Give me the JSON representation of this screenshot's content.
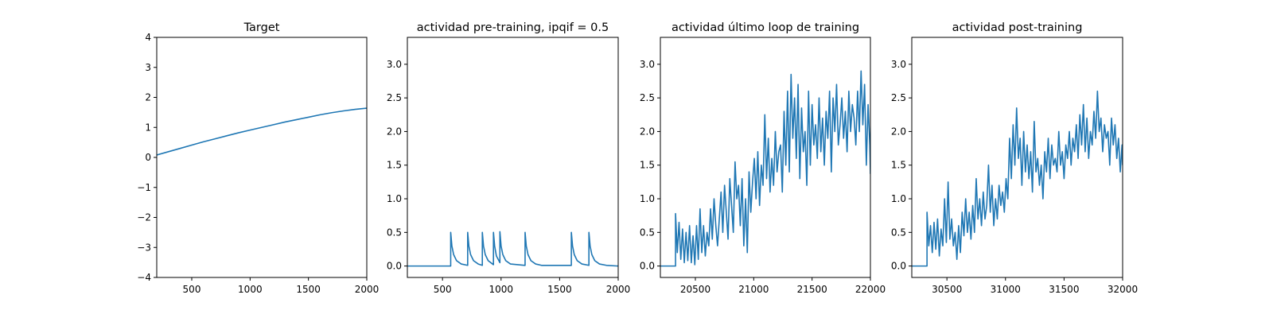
{
  "chart_data": [
    {
      "type": "line",
      "title": "Target",
      "xlim": [
        200,
        2000
      ],
      "ylim": [
        -4,
        4
      ],
      "xticks": [
        500,
        1000,
        1500,
        2000
      ],
      "yticks": [
        -4,
        -3,
        -2,
        -1,
        0,
        1,
        2,
        3,
        4
      ],
      "series": [
        {
          "color": "#1f77b4",
          "x": [
            200,
            300,
            400,
            500,
            600,
            700,
            800,
            900,
            1000,
            1100,
            1200,
            1300,
            1400,
            1500,
            1600,
            1700,
            1800,
            1900,
            2000
          ],
          "y": [
            0.08,
            0.19,
            0.3,
            0.41,
            0.52,
            0.62,
            0.72,
            0.82,
            0.91,
            1.0,
            1.09,
            1.18,
            1.26,
            1.34,
            1.42,
            1.49,
            1.55,
            1.6,
            1.64
          ]
        }
      ]
    },
    {
      "type": "line",
      "title": "actividad pre-training, ipqif = 0.5",
      "xlim": [
        200,
        2000
      ],
      "ylim": [
        -0.17,
        3.4
      ],
      "xticks": [
        500,
        1000,
        1500,
        2000
      ],
      "yticks": [
        0.0,
        0.5,
        1.0,
        1.5,
        2.0,
        2.5,
        3.0
      ],
      "series": [
        {
          "color": "#1f77b4",
          "x": [
            200,
            570,
            570,
            580,
            595,
            620,
            660,
            715,
            715,
            725,
            740,
            765,
            805,
            840,
            840,
            850,
            865,
            890,
            935,
            935,
            945,
            960,
            990,
            990,
            1000,
            1015,
            1040,
            1080,
            1205,
            1205,
            1215,
            1230,
            1255,
            1295,
            1345,
            1600,
            1600,
            1610,
            1625,
            1650,
            1690,
            1750,
            1750,
            1760,
            1775,
            1800,
            1840,
            1900,
            2000
          ],
          "y": [
            0.0,
            0.0,
            0.5,
            0.3,
            0.17,
            0.08,
            0.03,
            0.01,
            0.5,
            0.3,
            0.17,
            0.08,
            0.03,
            0.01,
            0.5,
            0.3,
            0.17,
            0.08,
            0.02,
            0.5,
            0.3,
            0.15,
            0.05,
            0.51,
            0.3,
            0.17,
            0.08,
            0.03,
            0.01,
            0.5,
            0.3,
            0.17,
            0.08,
            0.03,
            0.01,
            0.01,
            0.5,
            0.3,
            0.17,
            0.08,
            0.03,
            0.01,
            0.5,
            0.3,
            0.17,
            0.08,
            0.03,
            0.01,
            0.0
          ]
        }
      ]
    },
    {
      "type": "line",
      "title": "actividad último loop de training",
      "xlim": [
        20200,
        22000
      ],
      "ylim": [
        -0.17,
        3.4
      ],
      "xticks": [
        20500,
        21000,
        21500,
        22000
      ],
      "yticks": [
        0.0,
        0.5,
        1.0,
        1.5,
        2.0,
        2.5,
        3.0
      ],
      "series": [
        {
          "color": "#1f77b4",
          "x": [
            20200,
            20330,
            20330,
            20345,
            20360,
            20375,
            20390,
            20405,
            20420,
            20435,
            20450,
            20465,
            20480,
            20495,
            20510,
            20525,
            20540,
            20555,
            20570,
            20585,
            20600,
            20615,
            20630,
            20645,
            20660,
            20675,
            20690,
            20705,
            20720,
            20735,
            20750,
            20765,
            20780,
            20795,
            20810,
            20825,
            20840,
            20855,
            20870,
            20885,
            20900,
            20915,
            20930,
            20945,
            20960,
            20975,
            20990,
            21005,
            21020,
            21035,
            21050,
            21065,
            21080,
            21095,
            21110,
            21125,
            21140,
            21155,
            21170,
            21185,
            21200,
            21215,
            21230,
            21245,
            21260,
            21275,
            21290,
            21305,
            21320,
            21335,
            21350,
            21365,
            21380,
            21395,
            21410,
            21425,
            21440,
            21455,
            21470,
            21485,
            21500,
            21515,
            21530,
            21545,
            21560,
            21575,
            21590,
            21605,
            21620,
            21635,
            21650,
            21665,
            21680,
            21695,
            21710,
            21725,
            21740,
            21755,
            21770,
            21785,
            21800,
            21815,
            21830,
            21845,
            21860,
            21875,
            21890,
            21905,
            21920,
            21935,
            21950,
            21965,
            21980,
            21995,
            22000
          ],
          "y": [
            0.0,
            0.0,
            0.78,
            0.2,
            0.65,
            0.1,
            0.55,
            0.05,
            0.5,
            0.08,
            0.6,
            0.05,
            0.45,
            0.02,
            0.6,
            0.1,
            0.85,
            0.2,
            0.6,
            0.15,
            0.5,
            0.3,
            0.85,
            0.4,
            1.0,
            0.6,
            0.3,
            0.7,
            1.1,
            0.5,
            1.2,
            0.8,
            0.4,
            1.3,
            0.9,
            0.5,
            1.55,
            1.0,
            1.2,
            0.6,
            1.3,
            0.3,
            1.0,
            0.2,
            1.4,
            0.8,
            1.25,
            1.6,
            1.0,
            1.7,
            0.9,
            1.5,
            1.2,
            2.25,
            1.3,
            1.9,
            1.1,
            1.6,
            1.2,
            2.0,
            1.4,
            1.7,
            1.8,
            1.1,
            2.3,
            1.5,
            2.6,
            1.4,
            2.85,
            1.9,
            2.5,
            1.6,
            2.7,
            1.3,
            2.35,
            1.7,
            2.0,
            1.2,
            2.6,
            1.5,
            2.4,
            1.8,
            2.1,
            1.6,
            2.5,
            1.7,
            2.2,
            1.5,
            2.3,
            1.9,
            2.6,
            1.4,
            2.5,
            2.0,
            2.7,
            1.8,
            2.1,
            2.5,
            1.9,
            2.3,
            1.7,
            2.6,
            2.0,
            2.4,
            2.2,
            1.8,
            2.6,
            2.0,
            2.9,
            2.1,
            2.7,
            1.5,
            2.4,
            1.8,
            1.37
          ]
        }
      ]
    },
    {
      "type": "line",
      "title": "actividad post-training",
      "xlim": [
        30200,
        32000
      ],
      "ylim": [
        -0.17,
        3.4
      ],
      "xticks": [
        30500,
        31000,
        31500,
        32000
      ],
      "yticks": [
        0.0,
        0.5,
        1.0,
        1.5,
        2.0,
        2.5,
        3.0
      ],
      "series": [
        {
          "color": "#1f77b4",
          "x": [
            30200,
            30330,
            30330,
            30345,
            30360,
            30375,
            30390,
            30405,
            30420,
            30435,
            30450,
            30465,
            30480,
            30495,
            30510,
            30525,
            30540,
            30555,
            30570,
            30585,
            30600,
            30615,
            30630,
            30645,
            30660,
            30675,
            30690,
            30705,
            30720,
            30735,
            30750,
            30765,
            30780,
            30795,
            30810,
            30825,
            30840,
            30855,
            30870,
            30885,
            30900,
            30915,
            30930,
            30945,
            30960,
            30975,
            30990,
            31005,
            31020,
            31035,
            31050,
            31065,
            31080,
            31095,
            31110,
            31125,
            31140,
            31155,
            31170,
            31185,
            31200,
            31215,
            31230,
            31245,
            31260,
            31275,
            31290,
            31305,
            31320,
            31335,
            31350,
            31365,
            31380,
            31395,
            31410,
            31425,
            31440,
            31455,
            31470,
            31485,
            31500,
            31515,
            31530,
            31545,
            31560,
            31575,
            31590,
            31605,
            31620,
            31635,
            31650,
            31665,
            31680,
            31695,
            31710,
            31725,
            31740,
            31755,
            31770,
            31785,
            31800,
            31815,
            31830,
            31845,
            31860,
            31875,
            31890,
            31905,
            31920,
            31935,
            31950,
            31965,
            31980,
            31995,
            32000
          ],
          "y": [
            0.0,
            0.0,
            0.8,
            0.3,
            0.6,
            0.2,
            0.65,
            0.25,
            0.7,
            0.15,
            0.55,
            0.3,
            1.0,
            0.35,
            1.25,
            0.4,
            0.7,
            0.3,
            0.5,
            0.1,
            0.6,
            0.2,
            0.8,
            0.45,
            1.0,
            0.5,
            0.8,
            0.4,
            0.9,
            0.5,
            1.3,
            0.7,
            1.0,
            0.6,
            1.1,
            0.7,
            0.9,
            1.5,
            0.8,
            1.2,
            0.6,
            1.0,
            0.7,
            1.2,
            0.9,
            1.1,
            0.8,
            1.3,
            1.0,
            1.9,
            1.3,
            2.1,
            1.5,
            2.35,
            1.6,
            1.9,
            1.2,
            2.0,
            1.4,
            1.8,
            1.3,
            1.7,
            1.1,
            2.15,
            1.4,
            1.6,
            1.2,
            1.5,
            1.0,
            1.7,
            1.4,
            1.9,
            1.3,
            1.8,
            1.5,
            1.6,
            1.4,
            2.0,
            1.5,
            1.7,
            1.3,
            1.8,
            1.6,
            2.0,
            1.5,
            1.9,
            1.7,
            2.1,
            1.6,
            2.25,
            1.8,
            2.4,
            1.7,
            2.2,
            1.6,
            2.0,
            1.8,
            2.3,
            1.9,
            2.6,
            2.0,
            2.2,
            1.7,
            2.1,
            1.9,
            2.0,
            1.5,
            2.2,
            1.8,
            2.1,
            1.6,
            1.9,
            1.4,
            1.8,
            1.5
          ]
        }
      ]
    }
  ]
}
